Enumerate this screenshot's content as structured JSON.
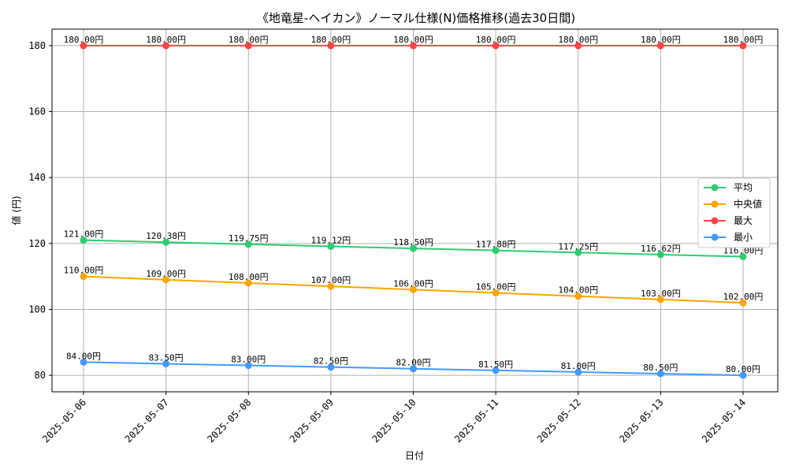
{
  "chart_data": {
    "type": "line",
    "title": "《地竜星-ヘイカン》ノーマル仕様(N)価格推移(過去30日間)",
    "xlabel": "日付",
    "ylabel": "値 (円)",
    "categories": [
      "2025-05-06",
      "2025-05-07",
      "2025-05-08",
      "2025-05-09",
      "2025-05-10",
      "2025-05-11",
      "2025-05-12",
      "2025-05-13",
      "2025-05-14"
    ],
    "ylim": [
      75,
      185
    ],
    "yticks": [
      80,
      100,
      120,
      140,
      160,
      180
    ],
    "grid": true,
    "legend_position": "center-right",
    "value_suffix": "円",
    "series": [
      {
        "name": "平均",
        "color": "#2ecc71",
        "values": [
          121.0,
          120.38,
          119.75,
          119.12,
          118.5,
          117.88,
          117.25,
          116.62,
          116.0
        ],
        "labels": [
          "121.00円",
          "120.38円",
          "119.75円",
          "119.12円",
          "118.50円",
          "117.88円",
          "117.25円",
          "116.62円",
          "116.00円"
        ]
      },
      {
        "name": "中央値",
        "color": "#ffa500",
        "values": [
          110,
          109,
          108,
          107,
          106,
          105,
          104,
          103,
          102
        ],
        "labels": [
          "110.00円",
          "109.00円",
          "108.00円",
          "107.00円",
          "106.00円",
          "105.00円",
          "104.00円",
          "103.00円",
          "102.00円"
        ]
      },
      {
        "name": "最大",
        "color": "#ff4444",
        "values": [
          180,
          180,
          180,
          180,
          180,
          180,
          180,
          180,
          180
        ],
        "labels": [
          "180.00円",
          "180.00円",
          "180.00円",
          "180.00円",
          "180.00円",
          "180.00円",
          "180.00円",
          "180.00円",
          "180.00円"
        ]
      },
      {
        "name": "最小",
        "color": "#4499ff",
        "values": [
          84.0,
          83.5,
          83.0,
          82.5,
          82.0,
          81.5,
          81.0,
          80.5,
          80.0
        ],
        "labels": [
          "84.00円",
          "83.50円",
          "83.00円",
          "82.50円",
          "82.00円",
          "81.50円",
          "81.00円",
          "80.50円",
          "80.00円"
        ]
      }
    ]
  }
}
